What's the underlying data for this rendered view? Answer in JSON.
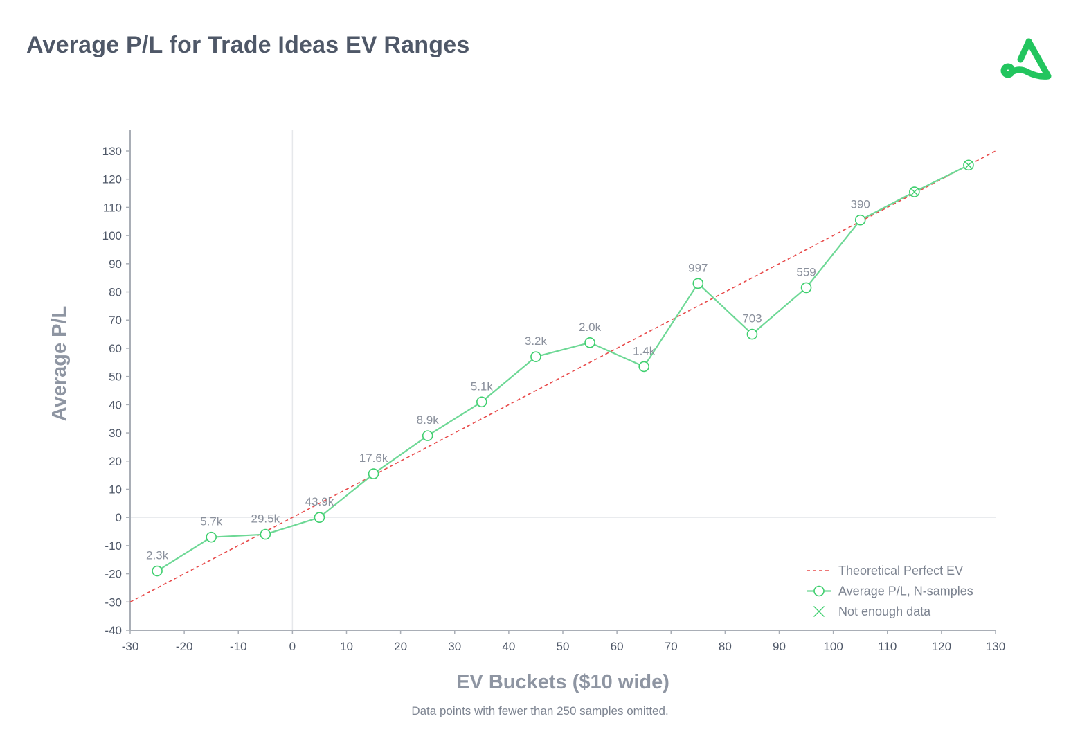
{
  "header": {
    "title": "Average P/L for Trade Ideas EV Ranges"
  },
  "logo": {
    "icon": "brand-triangle-logo-icon",
    "color": "#22c55e"
  },
  "footnote": "Data points with fewer than 250 samples omitted.",
  "colors": {
    "series": "#6dd895",
    "series_marker_stroke": "#3ecf6e",
    "reference_line": "#e84a4a",
    "axis": "#a9aeb6",
    "zero_line": "#e6e8eb",
    "text": "#4f5868"
  },
  "chart_data": {
    "type": "line",
    "title": "Average P/L for Trade Ideas EV Ranges",
    "xlabel": "EV Buckets ($10 wide)",
    "ylabel": "Average P/L",
    "xlim": [
      -30,
      130
    ],
    "ylim": [
      -40,
      130
    ],
    "xticks": [
      -30,
      -20,
      -10,
      0,
      10,
      20,
      30,
      40,
      50,
      60,
      70,
      80,
      90,
      100,
      110,
      120,
      130
    ],
    "yticks": [
      -40,
      -30,
      -20,
      -10,
      0,
      10,
      20,
      30,
      40,
      50,
      60,
      70,
      80,
      90,
      100,
      110,
      120,
      130
    ],
    "grid": false,
    "zero_lines": true,
    "legend_position": "bottom-right",
    "legend": [
      {
        "label": "Theoretical Perfect EV",
        "style": "dashed-line"
      },
      {
        "label": "Average P/L, N-samples",
        "style": "line-circle-marker"
      },
      {
        "label": "Not enough data",
        "style": "x-marker"
      }
    ],
    "series": [
      {
        "name": "Theoretical Perfect EV",
        "style": "dashed",
        "x": [
          -30,
          130
        ],
        "y": [
          -30,
          130
        ]
      },
      {
        "name": "Average P/L, N-samples",
        "style": "line-markers",
        "x": [
          -25,
          -15,
          -5,
          5,
          15,
          25,
          35,
          45,
          55,
          65,
          75,
          85,
          95,
          105,
          115,
          125
        ],
        "y": [
          -19,
          -7,
          -6,
          0,
          15.5,
          29,
          41,
          57,
          62,
          53.5,
          83,
          65,
          81.5,
          105.5,
          115.5,
          125
        ],
        "labels": [
          "2.3k",
          "5.7k",
          "29.5k",
          "43.9k",
          "17.6k",
          "8.9k",
          "5.1k",
          "3.2k",
          "2.0k",
          "1.4k",
          "997",
          "703",
          "559",
          "390",
          "",
          ""
        ],
        "insufficient_data": [
          false,
          false,
          false,
          false,
          false,
          false,
          false,
          false,
          false,
          false,
          false,
          false,
          false,
          false,
          true,
          true
        ]
      }
    ]
  }
}
